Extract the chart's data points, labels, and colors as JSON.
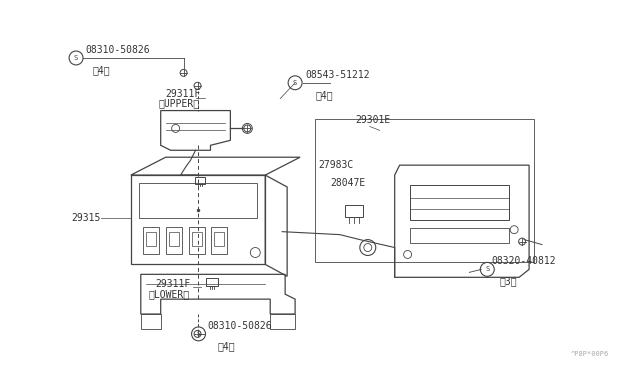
{
  "bg_color": "#ffffff",
  "line_color": "#444444",
  "text_color": "#333333",
  "watermark": "^P8P*00P6",
  "figsize": [
    6.4,
    3.72
  ],
  "dpi": 100,
  "labels": {
    "screw_top": "08310-50826",
    "screw_top_qty": "（4）",
    "screw_upper_bracket": "08543-51212",
    "screw_upper_bracket_qty": "（4）",
    "upper_bracket": "29311F",
    "upper_bracket_sub": "（UPPER）",
    "main_unit": "29315",
    "lower_bracket": "29311F",
    "lower_bracket_sub": "（LOWER）",
    "screw_bottom": "08310-50826",
    "screw_bottom_qty": "（4）",
    "escutcheon_group": "29301E",
    "wire": "27983C",
    "connector": "28047E",
    "screw_panel": "08320-40812",
    "screw_panel_qty": "（3）"
  }
}
